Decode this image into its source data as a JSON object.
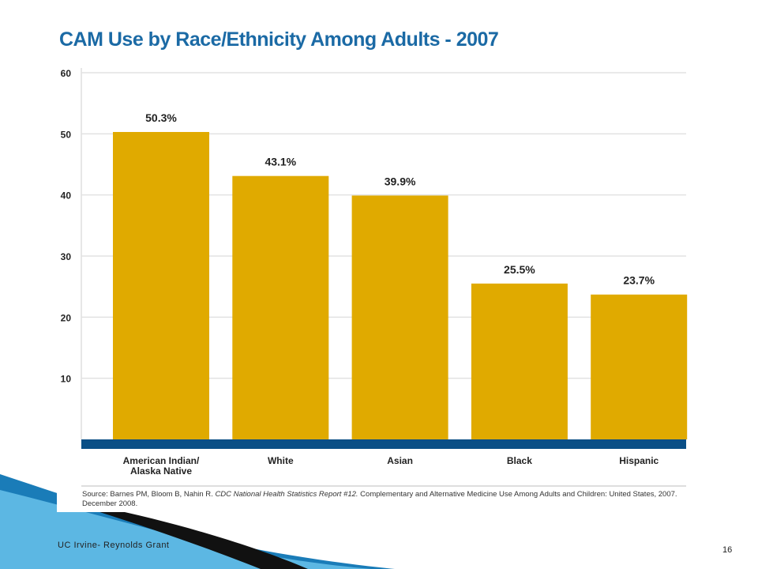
{
  "slide": {
    "footer": "UC Irvine- Reynolds Grant",
    "page_number": "16",
    "source_prefix": "Source: Barnes PM, Bloom B, Nahin R. ",
    "source_italic": "CDC National Health Statistics Report #12.",
    "source_suffix": " Complementary and Alternative Medicine Use Among Adults and Children: United States, 2007. December 2008."
  },
  "colors": {
    "title": "#1b6aa5",
    "bar": "#e0aa00",
    "baseline": "#0a4f86",
    "grid": "#e2e2e2"
  },
  "chart_data": {
    "type": "bar",
    "title": "CAM Use by Race/Ethnicity Among Adults - 2007",
    "xlabel": "",
    "ylabel": "",
    "categories": [
      [
        "American Indian/",
        "Alaska Native"
      ],
      [
        "White"
      ],
      [
        "Asian"
      ],
      [
        "Black"
      ],
      [
        "Hispanic"
      ]
    ],
    "values": [
      50.3,
      43.1,
      39.9,
      25.5,
      23.7
    ],
    "value_labels": [
      "50.3%",
      "43.1%",
      "39.9%",
      "25.5%",
      "23.7%"
    ],
    "yticks": [
      10,
      20,
      30,
      40,
      50,
      60
    ],
    "ylim": [
      0,
      60
    ],
    "grid": true
  }
}
